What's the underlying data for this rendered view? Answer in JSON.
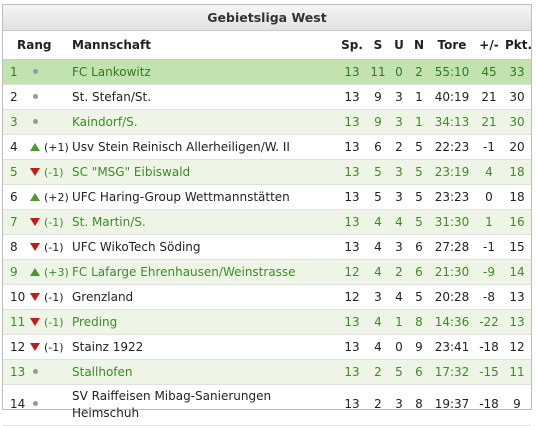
{
  "title": "Gebietsliga West",
  "columns": {
    "rang": "Rang",
    "team": "Mannschaft",
    "sp": "Sp.",
    "s": "S",
    "u": "U",
    "n": "N",
    "tore": "Tore",
    "diff": "+/-",
    "pkt": "Pkt."
  },
  "colors": {
    "lead_bg": "#c2e3b0",
    "green_bg": "#eef5e6",
    "green_text": "#3e8a27",
    "up": "#4a9a2e",
    "down": "#c41a1a"
  },
  "rows": [
    {
      "rank": "1",
      "trend": "same",
      "change": "",
      "team": "FC Lankowitz",
      "sp": "13",
      "s": "11",
      "u": "0",
      "n": "2",
      "tore": "55:10",
      "diff": "45",
      "pkt": "33",
      "style": "lead"
    },
    {
      "rank": "2",
      "trend": "same",
      "change": "",
      "team": "St. Stefan/St.",
      "sp": "13",
      "s": "9",
      "u": "3",
      "n": "1",
      "tore": "40:19",
      "diff": "21",
      "pkt": "30",
      "style": "plain"
    },
    {
      "rank": "3",
      "trend": "same",
      "change": "",
      "team": "Kaindorf/S.",
      "sp": "13",
      "s": "9",
      "u": "3",
      "n": "1",
      "tore": "34:13",
      "diff": "21",
      "pkt": "30",
      "style": "green"
    },
    {
      "rank": "4",
      "trend": "up",
      "change": "(+1)",
      "team": "Usv Stein Reinisch Allerheiligen/W. II",
      "sp": "13",
      "s": "6",
      "u": "2",
      "n": "5",
      "tore": "22:23",
      "diff": "-1",
      "pkt": "20",
      "style": "plain"
    },
    {
      "rank": "5",
      "trend": "down",
      "change": "(-1)",
      "team": "SC \"MSG\" Eibiswald",
      "sp": "13",
      "s": "5",
      "u": "3",
      "n": "5",
      "tore": "23:19",
      "diff": "4",
      "pkt": "18",
      "style": "green"
    },
    {
      "rank": "6",
      "trend": "up",
      "change": "(+2)",
      "team": "UFC Haring-Group Wettmannstätten",
      "sp": "13",
      "s": "5",
      "u": "3",
      "n": "5",
      "tore": "23:23",
      "diff": "0",
      "pkt": "18",
      "style": "plain"
    },
    {
      "rank": "7",
      "trend": "down",
      "change": "(-1)",
      "team": "St. Martin/S.",
      "sp": "13",
      "s": "4",
      "u": "4",
      "n": "5",
      "tore": "31:30",
      "diff": "1",
      "pkt": "16",
      "style": "green"
    },
    {
      "rank": "8",
      "trend": "down",
      "change": "(-1)",
      "team": "UFC WikoTech Söding",
      "sp": "13",
      "s": "4",
      "u": "3",
      "n": "6",
      "tore": "27:28",
      "diff": "-1",
      "pkt": "15",
      "style": "plain"
    },
    {
      "rank": "9",
      "trend": "up",
      "change": "(+3)",
      "team": "FC Lafarge Ehrenhausen/Weinstrasse",
      "sp": "12",
      "s": "4",
      "u": "2",
      "n": "6",
      "tore": "21:30",
      "diff": "-9",
      "pkt": "14",
      "style": "green"
    },
    {
      "rank": "10",
      "trend": "down",
      "change": "(-1)",
      "team": "Grenzland",
      "sp": "12",
      "s": "3",
      "u": "4",
      "n": "5",
      "tore": "20:28",
      "diff": "-8",
      "pkt": "13",
      "style": "plain"
    },
    {
      "rank": "11",
      "trend": "down",
      "change": "(-1)",
      "team": "Preding",
      "sp": "13",
      "s": "4",
      "u": "1",
      "n": "8",
      "tore": "14:36",
      "diff": "-22",
      "pkt": "13",
      "style": "green"
    },
    {
      "rank": "12",
      "trend": "down",
      "change": "(-1)",
      "team": "Stainz 1922",
      "sp": "13",
      "s": "4",
      "u": "0",
      "n": "9",
      "tore": "23:41",
      "diff": "-18",
      "pkt": "12",
      "style": "plain"
    },
    {
      "rank": "13",
      "trend": "same",
      "change": "",
      "team": "Stallhofen",
      "sp": "13",
      "s": "2",
      "u": "5",
      "n": "6",
      "tore": "17:32",
      "diff": "-15",
      "pkt": "11",
      "style": "green"
    },
    {
      "rank": "14",
      "trend": "same",
      "change": "",
      "team": "SV Raiffeisen Mibag-Sanierungen Heimschuh",
      "sp": "13",
      "s": "2",
      "u": "3",
      "n": "8",
      "tore": "19:37",
      "diff": "-18",
      "pkt": "9",
      "style": "plain"
    }
  ]
}
